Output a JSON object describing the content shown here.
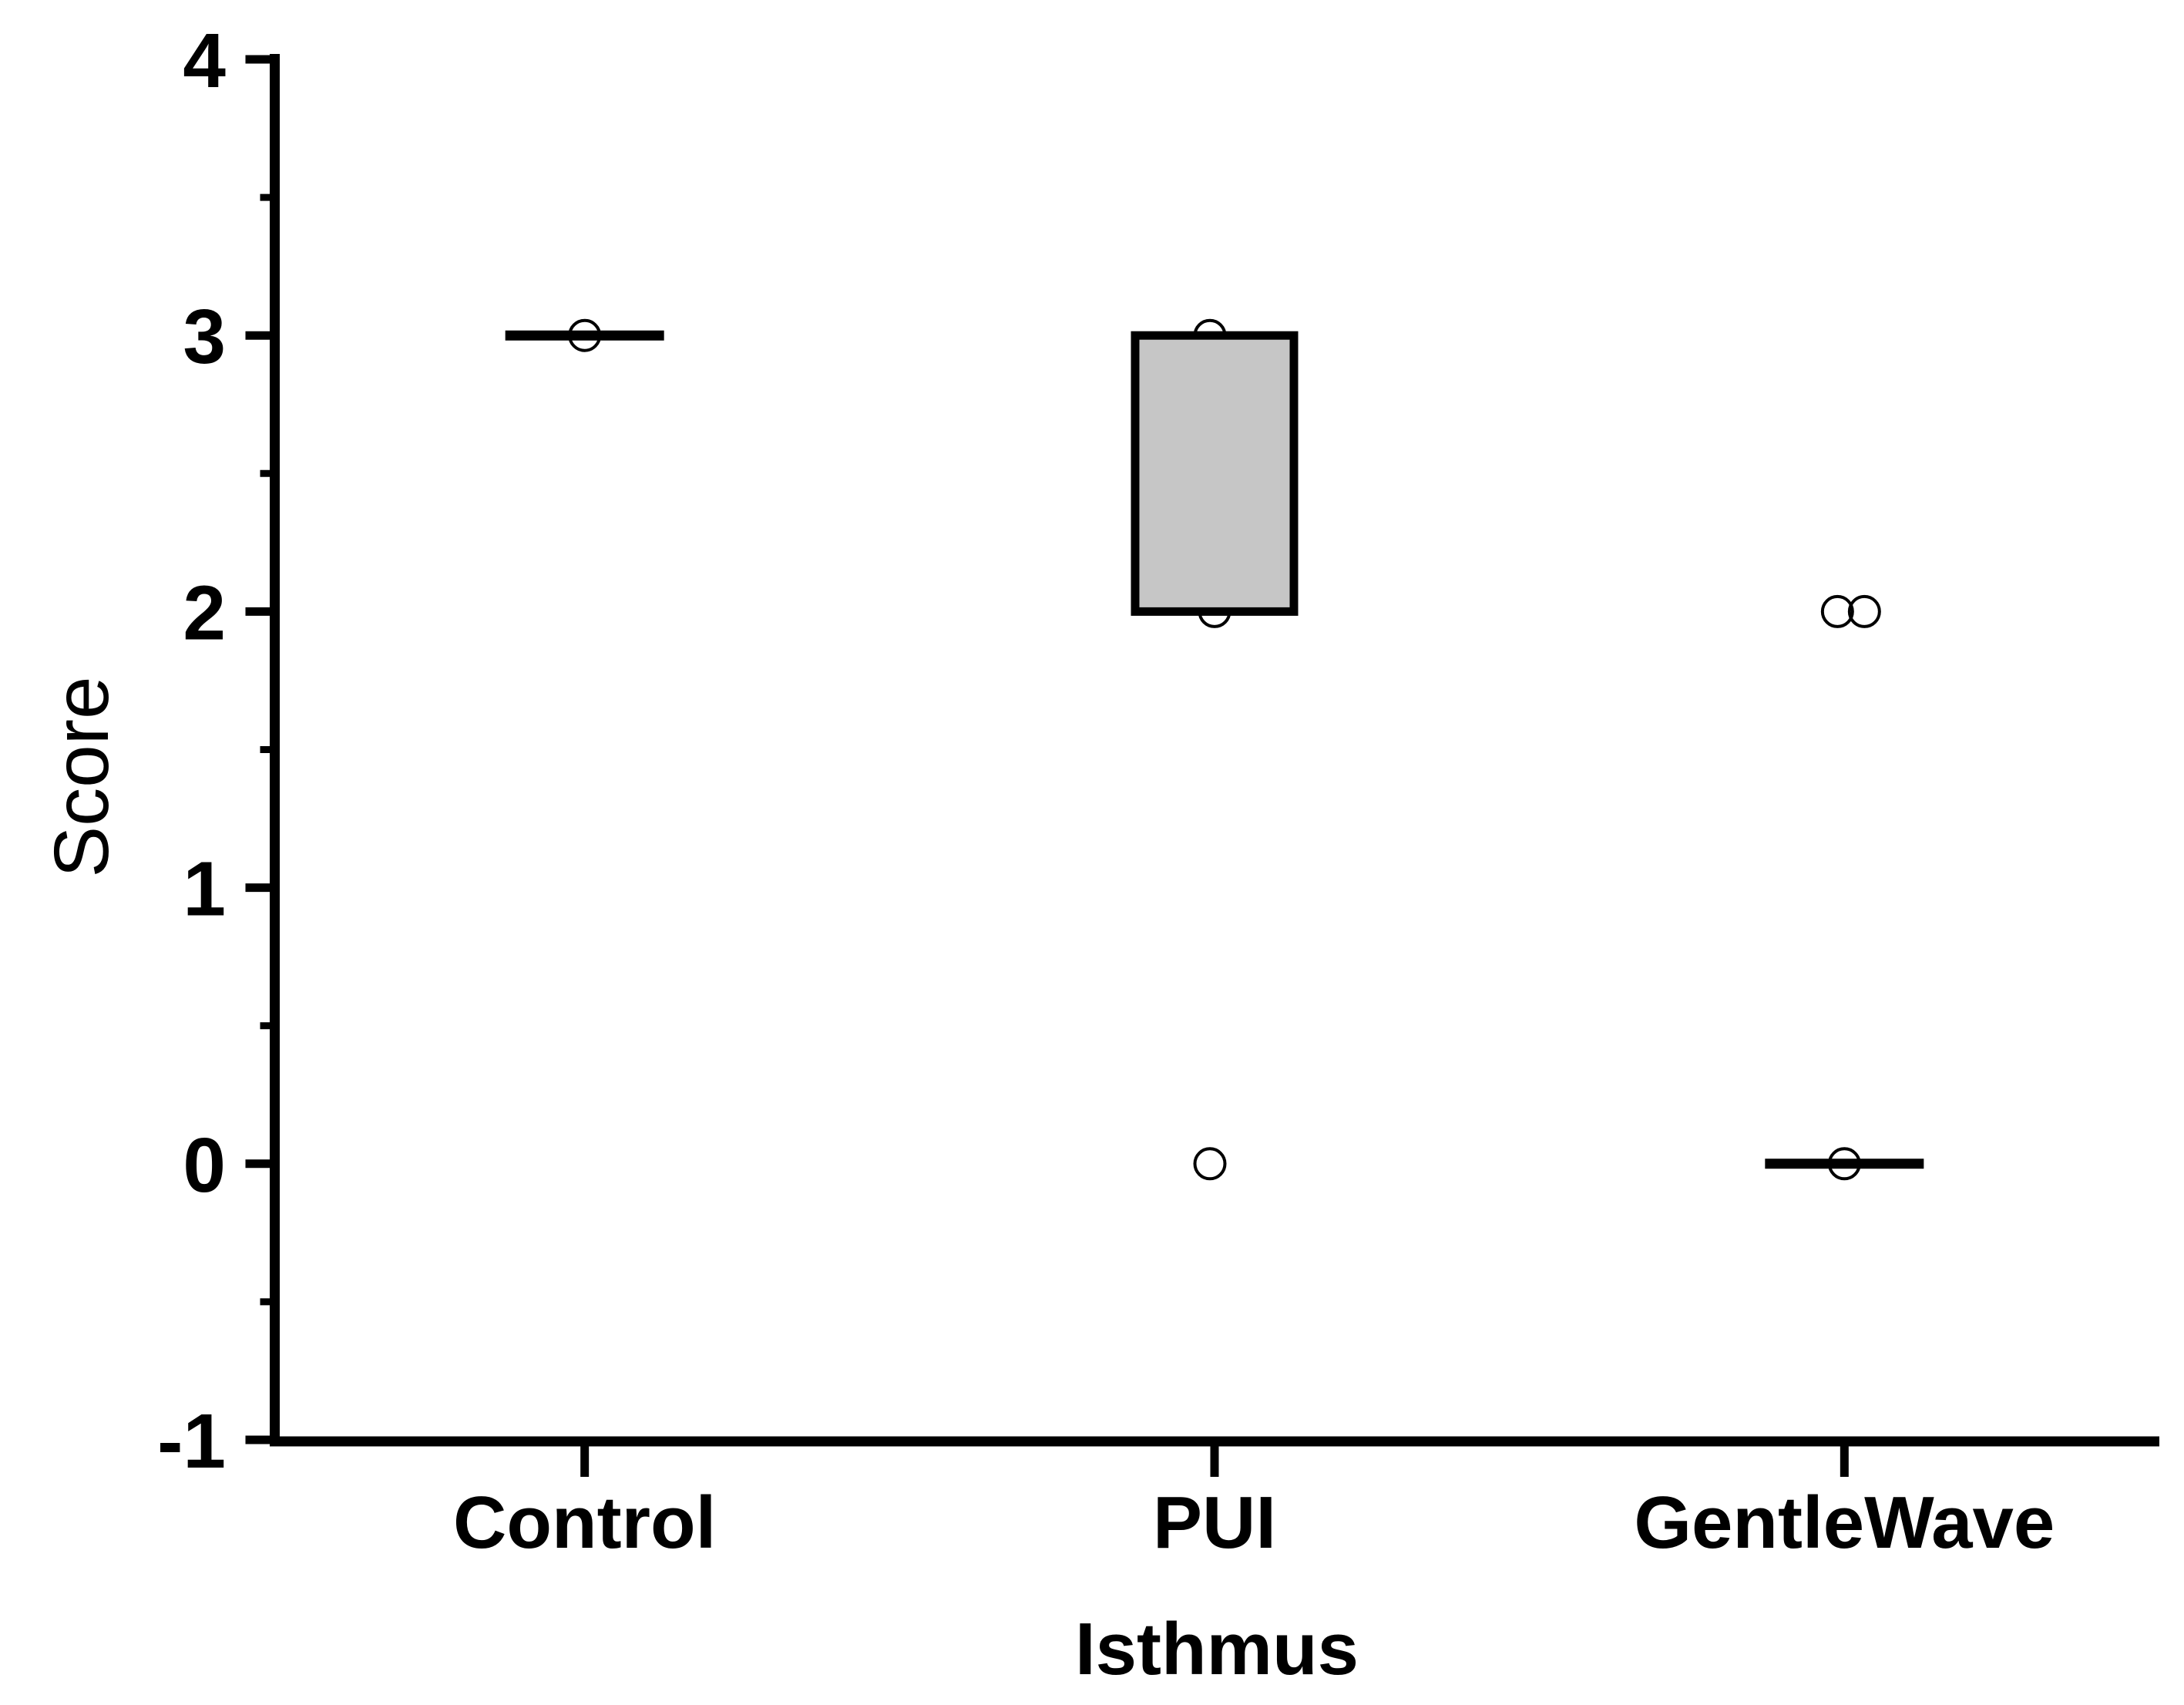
{
  "figure": {
    "background": "#ffffff"
  },
  "chart_data": {
    "type": "box",
    "title": "",
    "xlabel": "Isthmus",
    "ylabel": "Score",
    "categories": [
      "Control",
      "PUI",
      "GentleWave"
    ],
    "ylim": [
      -1,
      4
    ],
    "yticks_major": [
      4,
      3,
      2,
      1,
      0,
      -1
    ],
    "yticks_minor": [
      3.5,
      2.5,
      1.5,
      0.5,
      -0.5
    ],
    "grid": false,
    "legend": null,
    "colors": {
      "stroke": "#000000",
      "box_fill": "#c6c6c6",
      "background": "#ffffff"
    },
    "groups": [
      {
        "name": "Control",
        "median": 3,
        "box": null,
        "points": [
          {
            "value": 3,
            "dx": 0
          }
        ]
      },
      {
        "name": "PUI",
        "median": null,
        "box": {
          "lower": 2,
          "upper": 3
        },
        "points": [
          {
            "value": 3,
            "dx": -6
          },
          {
            "value": 2,
            "dx": 0
          },
          {
            "value": 0,
            "dx": -6
          }
        ]
      },
      {
        "name": "GentleWave",
        "median": 0,
        "box": null,
        "points": [
          {
            "value": 2,
            "dx": -9
          },
          {
            "value": 2,
            "dx": 26
          },
          {
            "value": 0,
            "dx": 0
          }
        ]
      }
    ]
  }
}
